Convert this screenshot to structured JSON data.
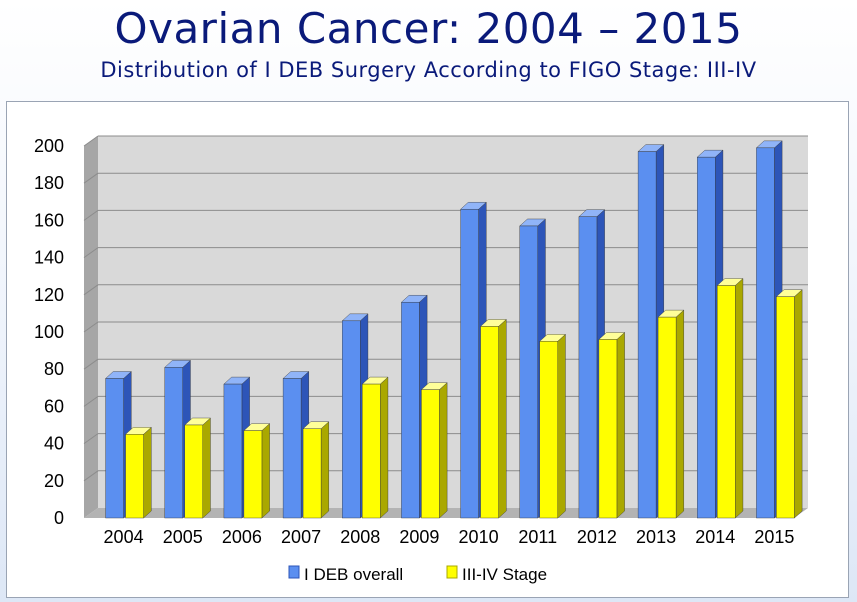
{
  "title": "Ovarian Cancer: 2004 – 2015",
  "subtitle": "Distribution of I DEB Surgery According to FIGO Stage: III-IV",
  "colors": {
    "series1_front": "#5b8ff0",
    "series1_side": "#2d55b8",
    "series1_top": "#90b4f8",
    "series2_front": "#ffff00",
    "series2_side": "#aaa800",
    "series2_top": "#ffff99",
    "plot_wall": "#d9d9d9",
    "plot_floor": "#b3b3b3",
    "plot_sidewall": "#a6a6a6",
    "grid": "#8c8c8c"
  },
  "chart_data": {
    "type": "bar",
    "categories": [
      "2004",
      "2005",
      "2006",
      "2007",
      "2008",
      "2009",
      "2010",
      "2011",
      "2012",
      "2013",
      "2014",
      "2015"
    ],
    "series": [
      {
        "name": "I DEB overall",
        "values": [
          75,
          81,
          72,
          75,
          106,
          116,
          166,
          157,
          162,
          197,
          194,
          199
        ]
      },
      {
        "name": "III-IV Stage",
        "values": [
          45,
          50,
          47,
          48,
          72,
          69,
          103,
          95,
          96,
          108,
          125,
          119
        ]
      }
    ],
    "yticks": [
      "0",
      "20",
      "40",
      "60",
      "80",
      "100",
      "120",
      "140",
      "160",
      "180",
      "200"
    ],
    "ylim": [
      0,
      200
    ],
    "grid": true,
    "legend_position": "bottom-center",
    "three_d": true
  }
}
